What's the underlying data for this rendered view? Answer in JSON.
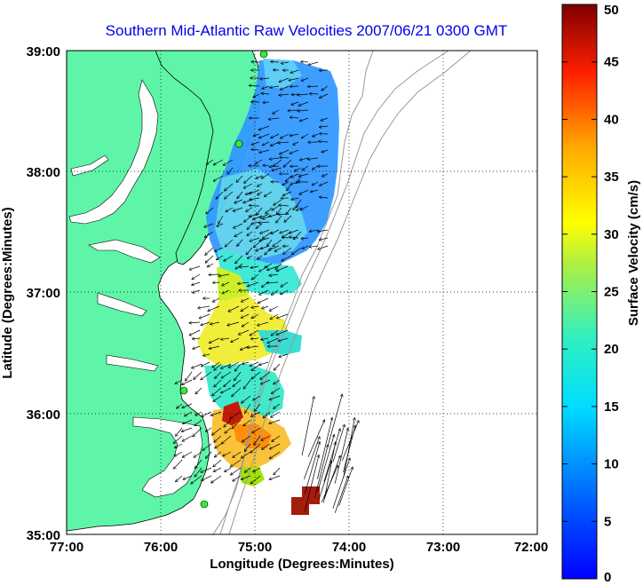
{
  "title": "Southern Mid-Atlantic Raw Velocities 2007/06/21 0300 GMT",
  "xlabel": "Longitude (Degrees:Minutes)",
  "ylabel": "Latitude (Degrees:Minutes)",
  "x_ticks": [
    "77:00",
    "76:00",
    "75:00",
    "74:00",
    "73:00",
    "72:00"
  ],
  "y_ticks": [
    "39:00",
    "38:00",
    "37:00",
    "36:00",
    "35:00"
  ],
  "colorbar": {
    "label": "Surface Velocity (cm/s)",
    "min": 0,
    "max": 50,
    "ticks": [
      "50",
      "45",
      "40",
      "35",
      "30",
      "25",
      "20",
      "15",
      "10",
      "5",
      "0"
    ],
    "colormap": "jet"
  },
  "map": {
    "lon_range": [
      -77,
      -72
    ],
    "lat_range": [
      35,
      39
    ],
    "land_color": "#5ef5a8",
    "water_color": "#ffffff",
    "grid": "dotted"
  },
  "radar_sites": [
    {
      "lon": -74.97,
      "lat": 38.95
    },
    {
      "lon": -75.1,
      "lat": 38.22
    },
    {
      "lon": -75.75,
      "lat": 36.17
    },
    {
      "lon": -75.57,
      "lat": 35.24
    }
  ]
}
